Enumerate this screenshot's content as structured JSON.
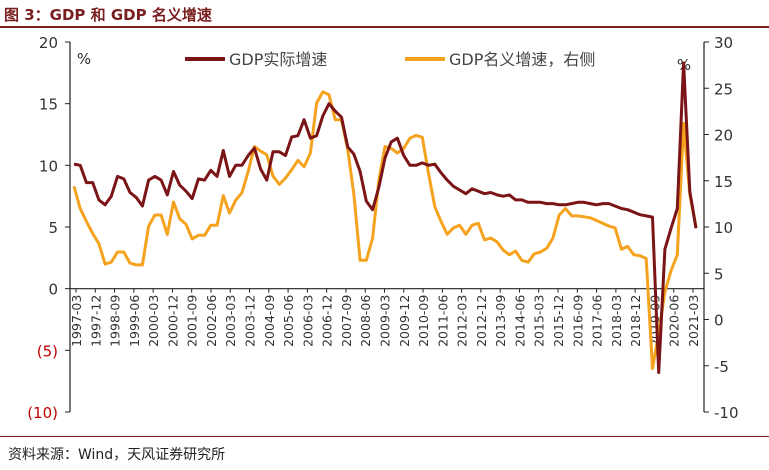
{
  "title": "图 3：GDP 和 GDP 名义增速",
  "source": "资料来源：Wind，天风证券研究所",
  "colors": {
    "real": "#7A1416",
    "nominal": "#F5A21E",
    "axis": "#222222",
    "negative": "#C00000",
    "accent": "#7A1F1F"
  },
  "chart_data": {
    "type": "line",
    "title": "图 3：GDP 和 GDP 名义增速",
    "left_axis": {
      "unit": "%",
      "ylim": [
        -10,
        20
      ],
      "ticks": [
        20,
        15,
        10,
        5,
        0,
        -5,
        -10
      ],
      "tick_labels": [
        "20",
        "15",
        "10",
        "5",
        "0",
        "(5)",
        "(10)"
      ]
    },
    "right_axis": {
      "unit": "%",
      "ylim": [
        -10,
        30
      ],
      "ticks": [
        30,
        25,
        20,
        15,
        10,
        5,
        0,
        -5,
        -10
      ],
      "tick_labels": [
        "30",
        "25",
        "20",
        "15",
        "10",
        "5",
        "0",
        "-5",
        "-10"
      ]
    },
    "x_tick_labels": [
      "1997-03",
      "1997-12",
      "1998-09",
      "1999-06",
      "2000-03",
      "2000-12",
      "2001-09",
      "2002-06",
      "2003-03",
      "2003-12",
      "2004-09",
      "2005-06",
      "2006-03",
      "2006-12",
      "2007-09",
      "2008-06",
      "2009-03",
      "2009-12",
      "2010-09",
      "2011-06",
      "2012-03",
      "2012-12",
      "2013-09",
      "2014-06",
      "2015-03",
      "2015-12",
      "2016-09",
      "2017-06",
      "2018-03",
      "2018-12",
      "2019-09",
      "2020-06",
      "2021-03"
    ],
    "grid": false,
    "legend_placement": "top",
    "series": [
      {
        "name": "GDP实际增速",
        "axis": "left",
        "values": [
          10.1,
          10.0,
          8.6,
          8.6,
          7.2,
          6.8,
          7.5,
          9.1,
          8.9,
          7.8,
          7.4,
          6.7,
          8.8,
          9.1,
          8.8,
          7.6,
          9.5,
          8.4,
          7.9,
          7.3,
          8.9,
          8.8,
          9.6,
          9.1,
          11.2,
          9.1,
          10.0,
          10.0,
          10.8,
          11.4,
          9.7,
          8.8,
          11.1,
          11.1,
          10.8,
          12.3,
          12.4,
          13.7,
          12.2,
          12.4,
          14.0,
          15.0,
          14.4,
          13.9,
          11.5,
          10.9,
          9.5,
          7.1,
          6.4,
          8.2,
          10.6,
          11.9,
          12.2,
          10.8,
          10.0,
          10.0,
          10.2,
          10.0,
          10.1,
          9.4,
          8.8,
          8.3,
          8.0,
          7.7,
          8.1,
          7.9,
          7.7,
          7.8,
          7.6,
          7.5,
          7.6,
          7.2,
          7.2,
          7.0,
          7.0,
          7.0,
          6.9,
          6.9,
          6.8,
          6.8,
          6.9,
          7.0,
          7.0,
          6.9,
          6.8,
          6.9,
          6.9,
          6.7,
          6.5,
          6.4,
          6.2,
          6.0,
          5.9,
          5.8,
          -6.8,
          3.2,
          4.9,
          6.5,
          18.3,
          7.9,
          4.9
        ]
      },
      {
        "name": "GDP名义增速，右侧",
        "axis": "right",
        "values": [
          14.4,
          12.0,
          10.6,
          9.3,
          8.2,
          6.0,
          6.2,
          7.3,
          7.3,
          6.1,
          5.9,
          5.9,
          10.1,
          11.3,
          11.3,
          9.2,
          12.7,
          10.9,
          10.3,
          8.7,
          9.1,
          9.1,
          10.2,
          10.2,
          13.4,
          11.5,
          12.9,
          13.7,
          16.0,
          18.7,
          18.2,
          17.8,
          15.5,
          14.6,
          15.3,
          16.2,
          17.2,
          16.5,
          18.0,
          23.4,
          24.6,
          24.3,
          21.6,
          21.6,
          18.4,
          13.5,
          6.4,
          6.4,
          8.8,
          15.0,
          18.7,
          18.5,
          18.0,
          18.5,
          19.6,
          19.9,
          19.7,
          15.8,
          12.2,
          10.6,
          9.2,
          9.9,
          10.2,
          9.2,
          10.2,
          10.4,
          8.6,
          8.8,
          8.4,
          7.5,
          7.0,
          7.4,
          6.4,
          6.2,
          7.1,
          7.3,
          7.7,
          8.8,
          11.3,
          12.0,
          11.2,
          11.2,
          11.1,
          11.0,
          10.7,
          10.4,
          10.1,
          9.9,
          7.6,
          7.9,
          7.0,
          6.9,
          6.6,
          -5.3,
          -1.5,
          3.0,
          5.3,
          7.0,
          21.2,
          13.5,
          10.0
        ]
      }
    ]
  }
}
